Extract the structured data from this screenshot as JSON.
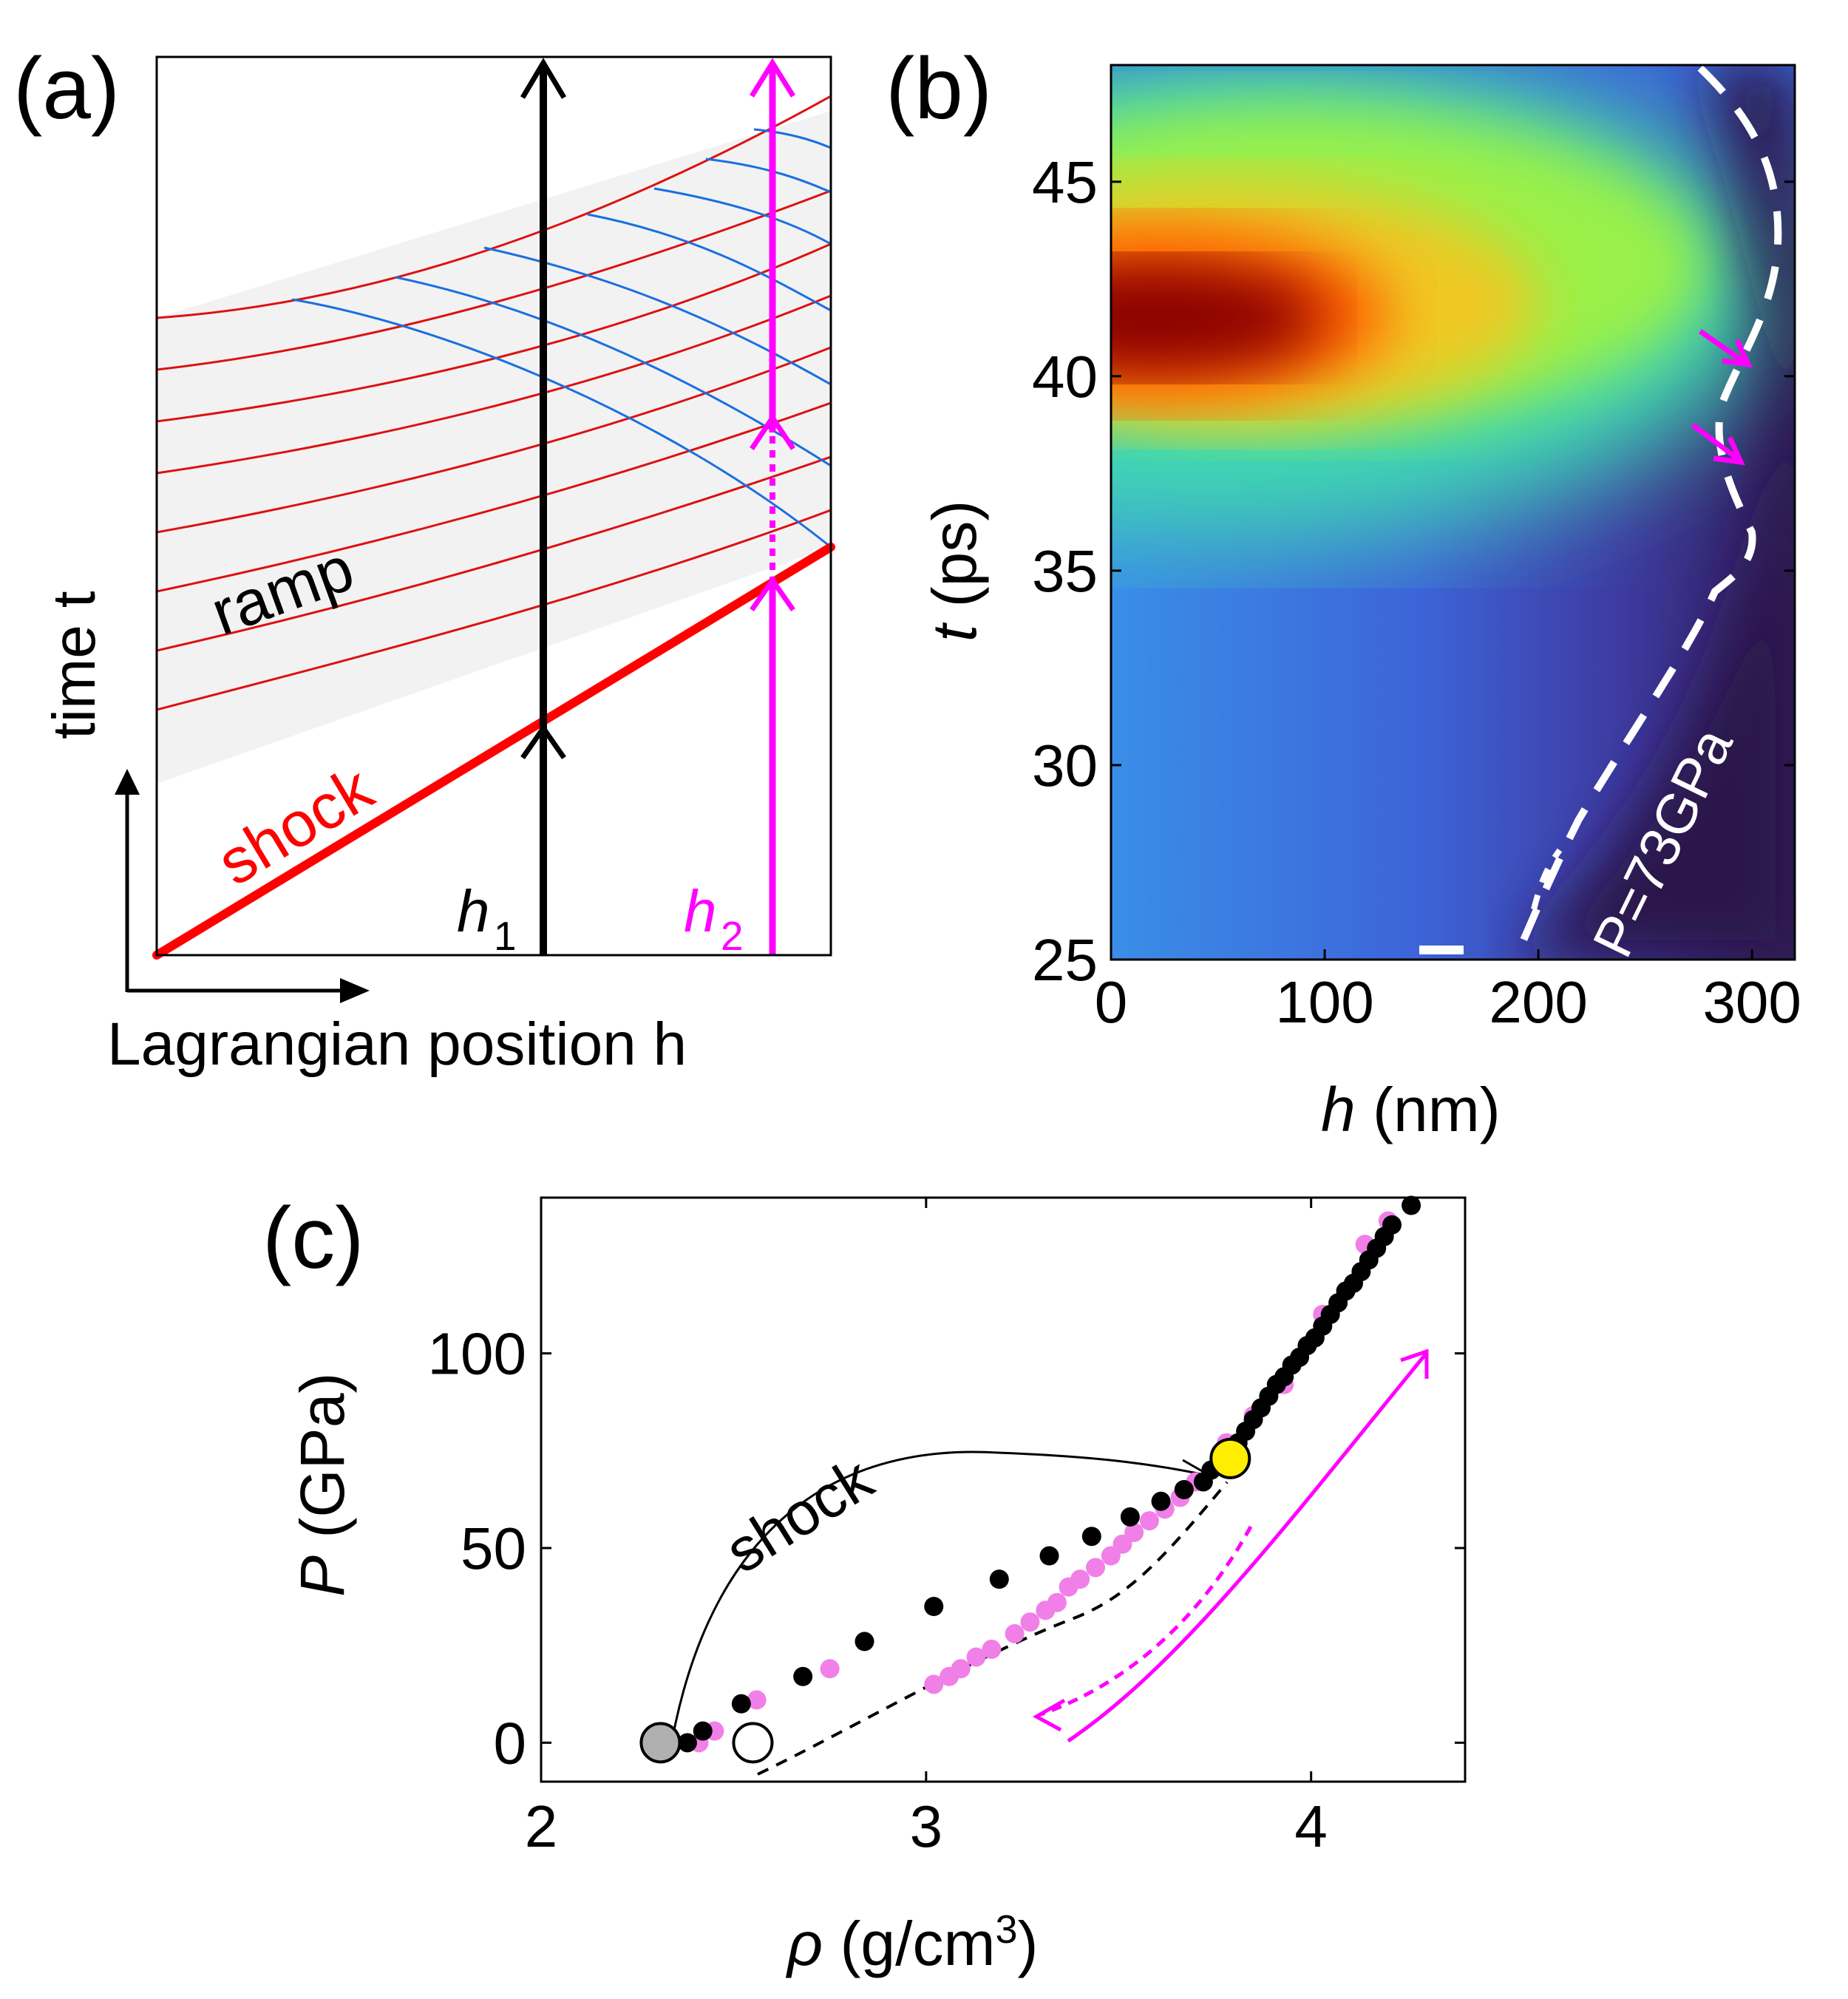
{
  "panels": {
    "a": {
      "label": "(a)"
    },
    "b": {
      "label": "(b)"
    },
    "c": {
      "label": "(c)"
    }
  },
  "chart_data": [
    {
      "id": "a",
      "type": "diagram",
      "title": "",
      "xlabel": "Lagrangian position h",
      "ylabel": "time t",
      "annotations": {
        "ramp": "ramp",
        "shock": "shock",
        "h1": "h",
        "h1_sub": "1",
        "h2": "h",
        "h2_sub": "2"
      },
      "colors": {
        "shock": "#ff0000",
        "characteristic_forward": "#dd1111",
        "characteristic_reflected": "#1a6fe0",
        "h1_path": "#000000",
        "h2_path": "#ff00ff",
        "ramp_region": "#f2f2f2"
      }
    },
    {
      "id": "b",
      "type": "heatmap",
      "title": "",
      "xlabel": "h (nm)",
      "xlabel_var": "h",
      "xlabel_unit": " (nm)",
      "ylabel": "t (ps)",
      "ylabel_var": "t",
      "ylabel_unit": " (ps)",
      "xlim": [
        0,
        320
      ],
      "ylim": [
        25,
        48
      ],
      "xticks": [
        0,
        100,
        200,
        300
      ],
      "yticks": [
        25,
        30,
        35,
        40,
        45
      ],
      "contour_label": "P=73GPa",
      "colors": {
        "contour": "#ffffff",
        "arrows": "#ff00ff"
      }
    },
    {
      "id": "c",
      "type": "scatter",
      "title": "",
      "xlabel": "ρ (g/cm3)",
      "xlabel_var": "ρ",
      "xlabel_unit": " (g/cm",
      "xlabel_sup": "3",
      "xlabel_close": ")",
      "ylabel": "P (GPa)",
      "ylabel_var": "P",
      "ylabel_unit": " (GPa)",
      "xlim": [
        2,
        4.4
      ],
      "ylim": [
        -10,
        140
      ],
      "xticks": [
        2,
        3,
        4
      ],
      "yticks": [
        0,
        50,
        100
      ],
      "annotations": {
        "shock": "shock"
      },
      "series": [
        {
          "name": "black",
          "color": "#000000",
          "x": [
            2.38,
            2.42,
            2.52,
            2.68,
            2.84,
            3.02,
            3.19,
            3.32,
            3.43,
            3.53,
            3.61,
            3.67,
            3.72,
            3.74,
            3.77,
            3.79,
            3.81,
            3.83,
            3.85,
            3.87,
            3.89,
            3.91,
            3.93,
            3.95,
            3.97,
            3.99,
            4.01,
            4.03,
            4.05,
            4.07,
            4.09,
            4.11,
            4.13,
            4.15,
            4.17,
            4.19,
            4.21,
            4.26
          ],
          "y": [
            0,
            3,
            10,
            17,
            26,
            35,
            42,
            48,
            53,
            58,
            62,
            65,
            67,
            70,
            73,
            75,
            77,
            80,
            83,
            86,
            89,
            92,
            94,
            97,
            99,
            102,
            104,
            107,
            110,
            113,
            116,
            118,
            121,
            124,
            127,
            130,
            133,
            138
          ]
        },
        {
          "name": "magenta",
          "color": "#f080e8",
          "x": [
            2.41,
            2.45,
            2.56,
            2.75,
            3.02,
            3.06,
            3.09,
            3.13,
            3.17,
            3.23,
            3.27,
            3.31,
            3.34,
            3.37,
            3.4,
            3.44,
            3.48,
            3.51,
            3.54,
            3.58,
            3.62,
            3.66,
            3.7,
            3.74,
            3.78,
            3.85,
            3.93,
            4.03,
            4.14,
            4.2
          ],
          "y": [
            0,
            3,
            11,
            19,
            15,
            17,
            19,
            22,
            24,
            28,
            31,
            34,
            36,
            40,
            42,
            45,
            48,
            51,
            54,
            57,
            60,
            63,
            67,
            70,
            77,
            84,
            92,
            110,
            128,
            134
          ]
        },
        {
          "name": "loading-points",
          "x": [
            2.31,
            2.55,
            3.79
          ],
          "y": [
            0,
            0,
            73
          ],
          "colors": [
            "#b0b0b0",
            "#ffffff",
            "#ffee00"
          ]
        }
      ],
      "colors": {
        "arrows": "#ff00ff"
      }
    }
  ]
}
